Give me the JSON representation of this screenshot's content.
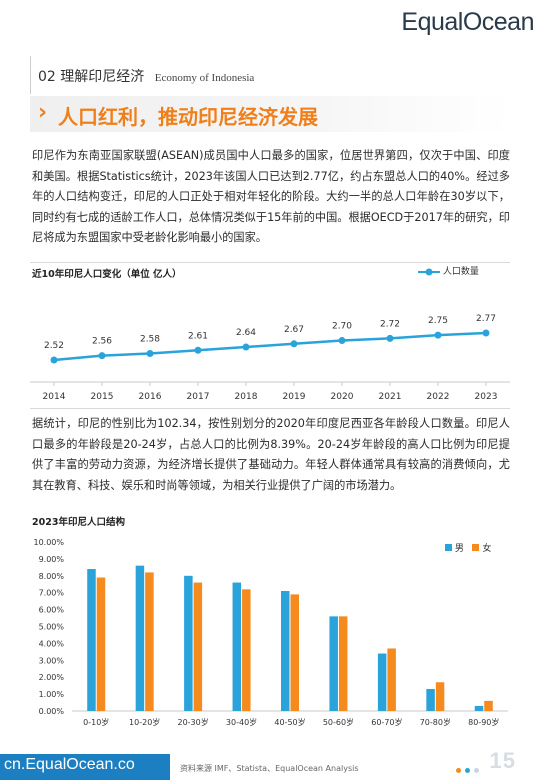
{
  "brand": {
    "logo": "EqualOcean"
  },
  "section": {
    "label": "02 理解印尼经济",
    "label_en": "Economy of Indonesia"
  },
  "hero": {
    "title": "人口红利，推动印尼经济发展"
  },
  "paragraph1": "印尼作为东南亚国家联盟(ASEAN)成员国中人口最多的国家，位居世界第四，仅次于中国、印度和美国。根据Statistics统计，2023年该国人口已达到2.77亿，约占东盟总人口的40%。经过多年的人口结构变迁，印尼的人口正处于相对年轻化的阶段。大约一半的总人口年龄在30岁以下，同时约有七成的适龄工作人口，总体情况类似于15年前的中国。根据OECD于2017年的研究，印尼将成为东盟国家中受老龄化影响最小的国家。",
  "paragraph2": "据统计，印尼的性别比为102.34，按性别划分的2020年印度尼西亚各年龄段人口数量。印尼人口最多的年龄段是20-24岁，占总人口的比例为8.39%。20-24岁年龄段的高人口比例为印尼提供了丰富的劳动力资源，为经济增长提供了基础动力。年轻人群体通常具有较高的消费倾向，尤其在教育、科技、娱乐和时尚等领域，为相关行业提供了广阔的市场潜力。",
  "chart_data": [
    {
      "type": "line",
      "title": "近10年印尼人口变化（单位  亿人）",
      "x": [
        "2014",
        "2015",
        "2016",
        "2017",
        "2018",
        "2019",
        "2020",
        "2021",
        "2022",
        "2023"
      ],
      "series": [
        {
          "name": "人口数量",
          "values": [
            2.52,
            2.56,
            2.58,
            2.61,
            2.64,
            2.67,
            2.7,
            2.72,
            2.75,
            2.77
          ],
          "color": "#29a3da"
        }
      ],
      "legend": "top-right"
    },
    {
      "type": "bar",
      "title": "2023年印尼人口结构",
      "categories": [
        "0-10岁",
        "10-20岁",
        "20-30岁",
        "30-40岁",
        "40-50岁",
        "50-60岁",
        "60-70岁",
        "70-80岁",
        "80-90岁"
      ],
      "series": [
        {
          "name": "男",
          "values": [
            8.4,
            8.6,
            8.0,
            7.6,
            7.1,
            5.6,
            3.4,
            1.3,
            0.3
          ],
          "color": "#29a3da"
        },
        {
          "name": "女",
          "values": [
            7.9,
            8.2,
            7.6,
            7.2,
            6.9,
            5.6,
            3.7,
            1.7,
            0.6
          ],
          "color": "#f58a1f"
        }
      ],
      "yticks": [
        "0.00%",
        "1.00%",
        "2.00%",
        "3.00%",
        "4.00%",
        "5.00%",
        "6.00%",
        "7.00%",
        "8.00%",
        "9.00%",
        "10.00%"
      ],
      "ylim": [
        0,
        10
      ],
      "legend": "top-right"
    }
  ],
  "footer": {
    "url": "cn.EqualOcean.co",
    "source": "资料来源  IMF、Statista、EqualOcean Analysis",
    "page": "15",
    "dot_colors": [
      "#f58a1f",
      "#29a3da",
      "#c9d6e0"
    ]
  }
}
